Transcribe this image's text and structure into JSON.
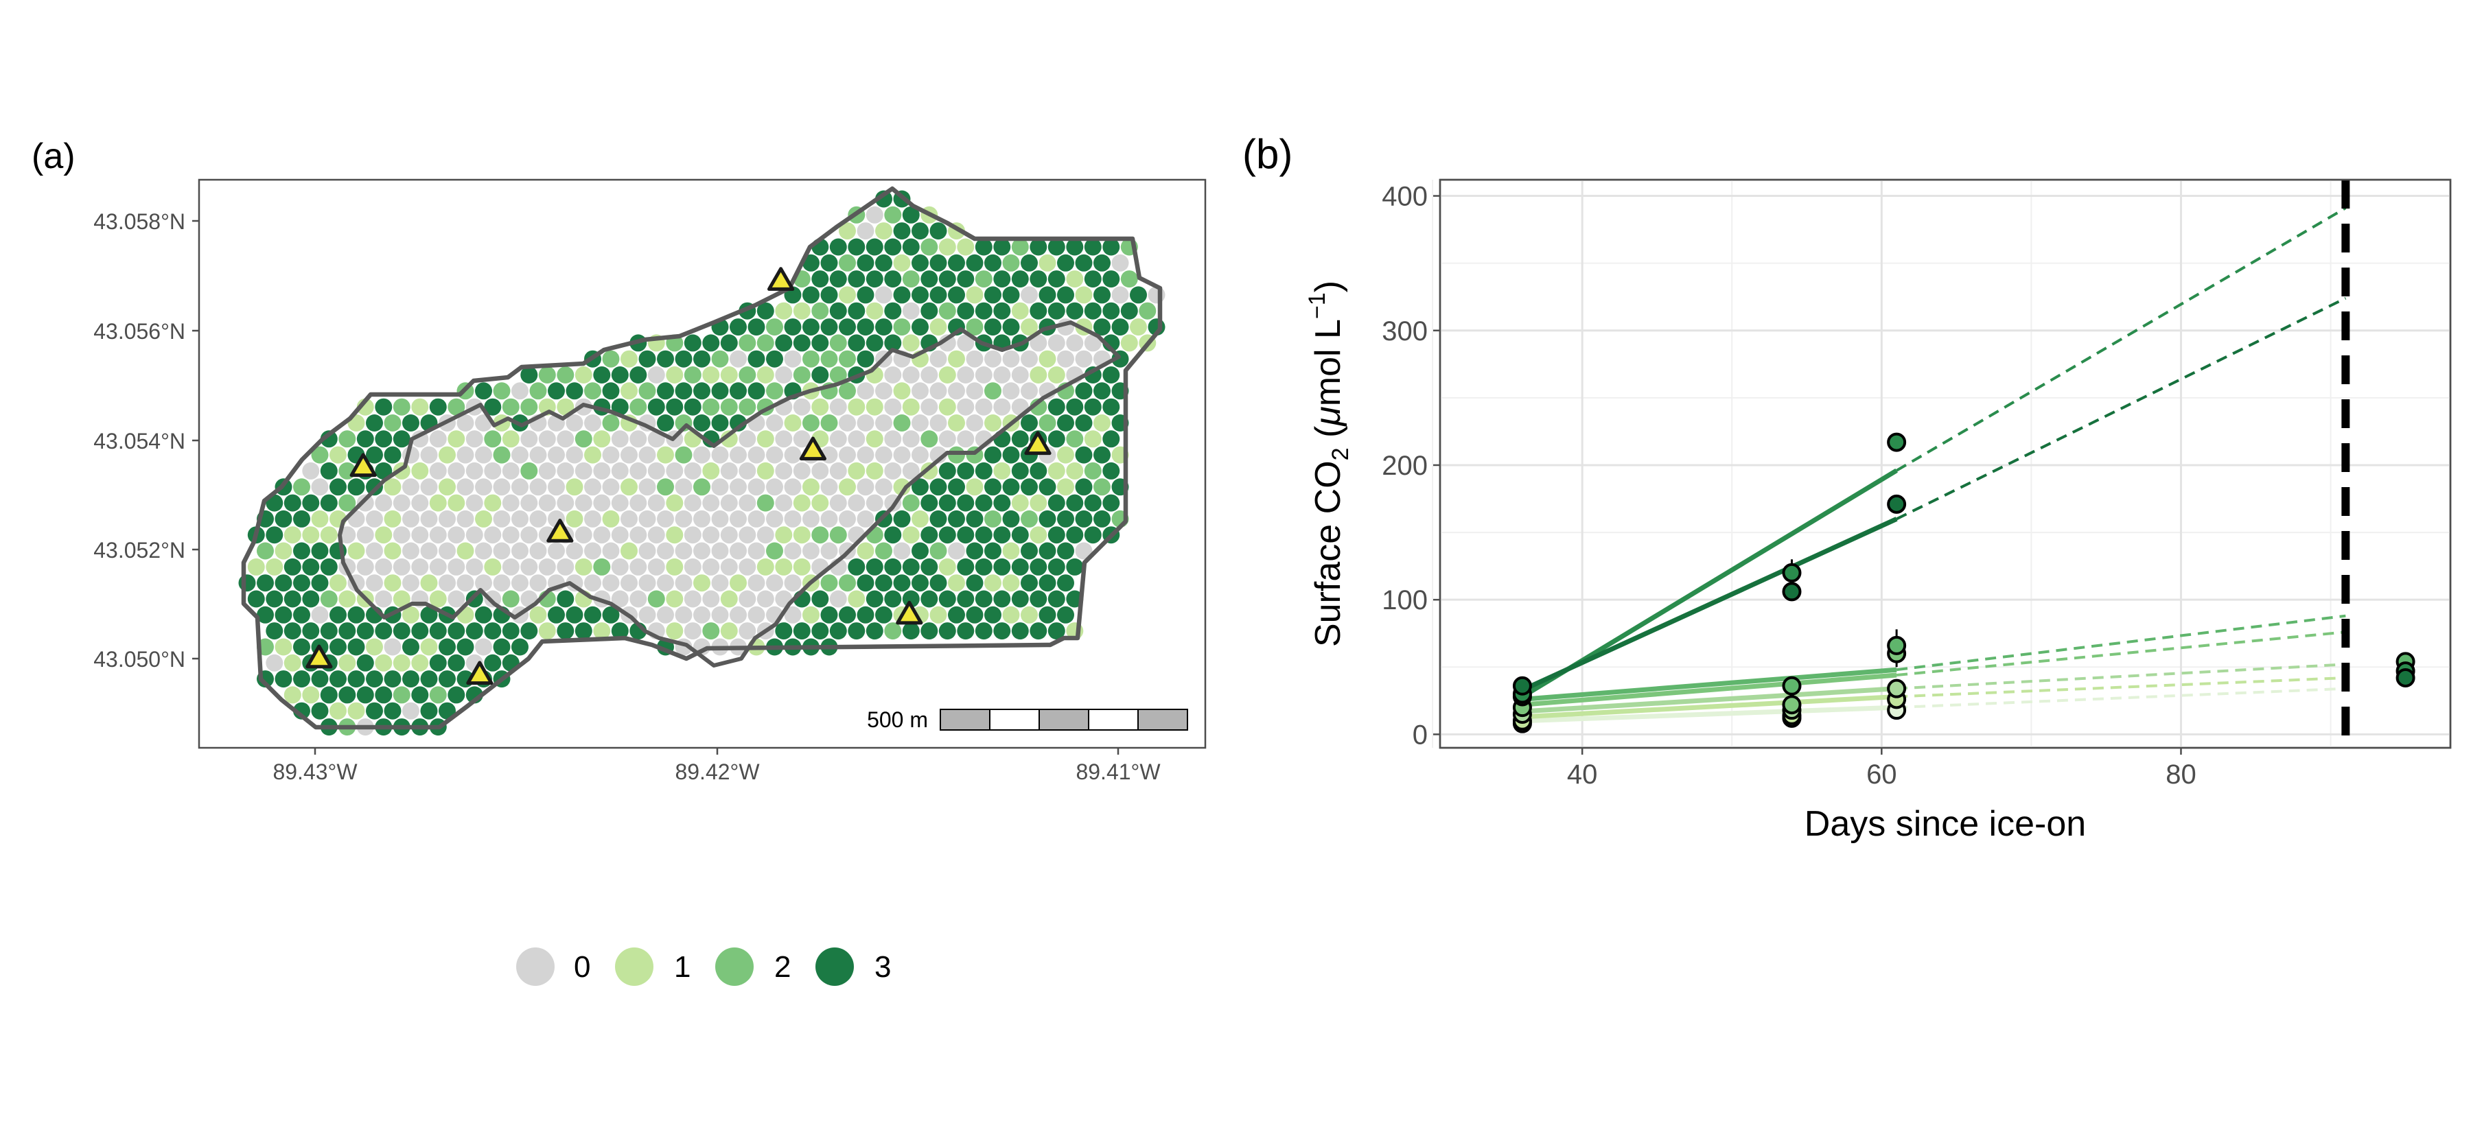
{
  "panel_a": {
    "label": "(a)",
    "lat_ticks": [
      "43.058°N",
      "43.056°N",
      "43.054°N",
      "43.052°N",
      "43.050°N"
    ],
    "lon_ticks": [
      "89.43°W",
      "89.42°W",
      "89.41°W"
    ],
    "scale_bar_label": "500 m"
  },
  "panel_b": {
    "label": "(b)",
    "xlabel": "Days since ice-on",
    "ylabel_main": "Surface CO",
    "ylabel_sub": "2",
    "ylabel_open": " (",
    "ylabel_mu": "μ",
    "ylabel_unit": "mol L",
    "ylabel_sup": "−1",
    "ylabel_close": ")"
  },
  "legend": {
    "items": [
      {
        "label": "0",
        "color": "#d4d4d4"
      },
      {
        "label": "1",
        "color": "#c2e49c"
      },
      {
        "label": "2",
        "color": "#7cc57b"
      },
      {
        "label": "3",
        "color": "#1b7a44"
      }
    ]
  },
  "colors": {
    "class0": "#d4d4d4",
    "class1": "#c2e49c",
    "class2": "#7cc57b",
    "class3": "#1b7a44",
    "site_marker": "#f1e63a",
    "boundary": "#595959"
  },
  "chart_data": [
    {
      "type": "map",
      "panel": "(a)",
      "xlabel": "",
      "ylabel": "",
      "lon_range": [
        -89.433,
        -89.408
      ],
      "lat_range": [
        43.0489,
        43.0585
      ],
      "lat_ticks": [
        43.058,
        43.056,
        43.054,
        43.052,
        43.05
      ],
      "lon_ticks": [
        -89.43,
        -89.42,
        -89.41
      ],
      "legend_classes": [
        "0",
        "1",
        "2",
        "3"
      ],
      "legend_placement": "bottom",
      "sites": [
        {
          "lon": -89.4288,
          "lat": 43.0535
        },
        {
          "lon": -89.4239,
          "lat": 43.0523
        },
        {
          "lon": -89.4184,
          "lat": 43.0569
        },
        {
          "lon": -89.4176,
          "lat": 43.0538
        },
        {
          "lon": -89.4152,
          "lat": 43.0508
        },
        {
          "lon": -89.412,
          "lat": 43.0539
        },
        {
          "lon": -89.4299,
          "lat": 43.05
        },
        {
          "lon": -89.4259,
          "lat": 43.0497
        }
      ],
      "scale_bar": "500 m"
    },
    {
      "type": "scatter",
      "panel": "(b)",
      "xlabel": "Days since ice-on",
      "ylabel": "Surface CO2 (μmol L−1)",
      "xlim": [
        30.5,
        98
      ],
      "ylim": [
        -10,
        412
      ],
      "xticks": [
        40,
        60,
        80
      ],
      "yticks": [
        0,
        100,
        200,
        300,
        400
      ],
      "grid": true,
      "vline": {
        "x": 91,
        "style": "dashed"
      },
      "series": [
        {
          "color": "#16713d",
          "line_points": [
            [
              36,
              33
            ],
            [
              61,
              160
            ]
          ],
          "projection_points": [
            [
              61,
              160
            ],
            [
              91,
              324
            ]
          ],
          "points": [
            [
              36,
              36
            ],
            [
              54,
              106
            ],
            [
              61,
              171
            ]
          ]
        },
        {
          "color": "#2a8c4d",
          "line_points": [
            [
              36,
              28
            ],
            [
              61,
              196
            ]
          ],
          "projection_points": [
            [
              61,
              196
            ],
            [
              91,
              391
            ]
          ],
          "points": [
            [
              36,
              30
            ],
            [
              54,
              120
            ],
            [
              61,
              217
            ]
          ]
        },
        {
          "color": "#5fb56c",
          "line_points": [
            [
              36,
              26
            ],
            [
              61,
              48
            ]
          ],
          "projection_points": [
            [
              61,
              48
            ],
            [
              91,
              88
            ]
          ],
          "points": [
            [
              36,
              28
            ],
            [
              54,
              36
            ],
            [
              61,
              66
            ]
          ]
        },
        {
          "color": "#7cc57b",
          "line_points": [
            [
              36,
              22
            ],
            [
              61,
              44
            ]
          ],
          "projection_points": [
            [
              61,
              44
            ],
            [
              91,
              76
            ]
          ],
          "points": [
            [
              36,
              20
            ],
            [
              54,
              22
            ],
            [
              61,
              60
            ]
          ]
        },
        {
          "color": "#a8d89b",
          "line_points": [
            [
              36,
              17
            ],
            [
              61,
              34
            ]
          ],
          "projection_points": [
            [
              61,
              34
            ],
            [
              91,
              52
            ]
          ],
          "points": [
            [
              36,
              15
            ],
            [
              54,
              18
            ],
            [
              61,
              34
            ]
          ]
        },
        {
          "color": "#c2e49c",
          "line_points": [
            [
              36,
              13
            ],
            [
              61,
              28
            ]
          ],
          "projection_points": [
            [
              61,
              28
            ],
            [
              91,
              42
            ]
          ],
          "points": [
            [
              36,
              10
            ],
            [
              54,
              14
            ],
            [
              61,
              26
            ]
          ]
        },
        {
          "color": "#e2f2d8",
          "line_points": [
            [
              36,
              10
            ],
            [
              61,
              20
            ]
          ],
          "projection_points": [
            [
              61,
              20
            ],
            [
              91,
              34
            ]
          ],
          "points": [
            [
              36,
              8
            ],
            [
              54,
              12
            ],
            [
              61,
              18
            ]
          ]
        }
      ],
      "late_points": [
        {
          "x": 95,
          "y": 54,
          "color": "#5fb56c"
        },
        {
          "x": 95,
          "y": 47,
          "color": "#2a8c4d"
        },
        {
          "x": 95,
          "y": 42,
          "color": "#16713d"
        }
      ],
      "error_bars": [
        {
          "x": 54,
          "ymin": 100,
          "ymax": 130
        },
        {
          "x": 61,
          "ymin": 50,
          "ymax": 78
        }
      ]
    }
  ]
}
